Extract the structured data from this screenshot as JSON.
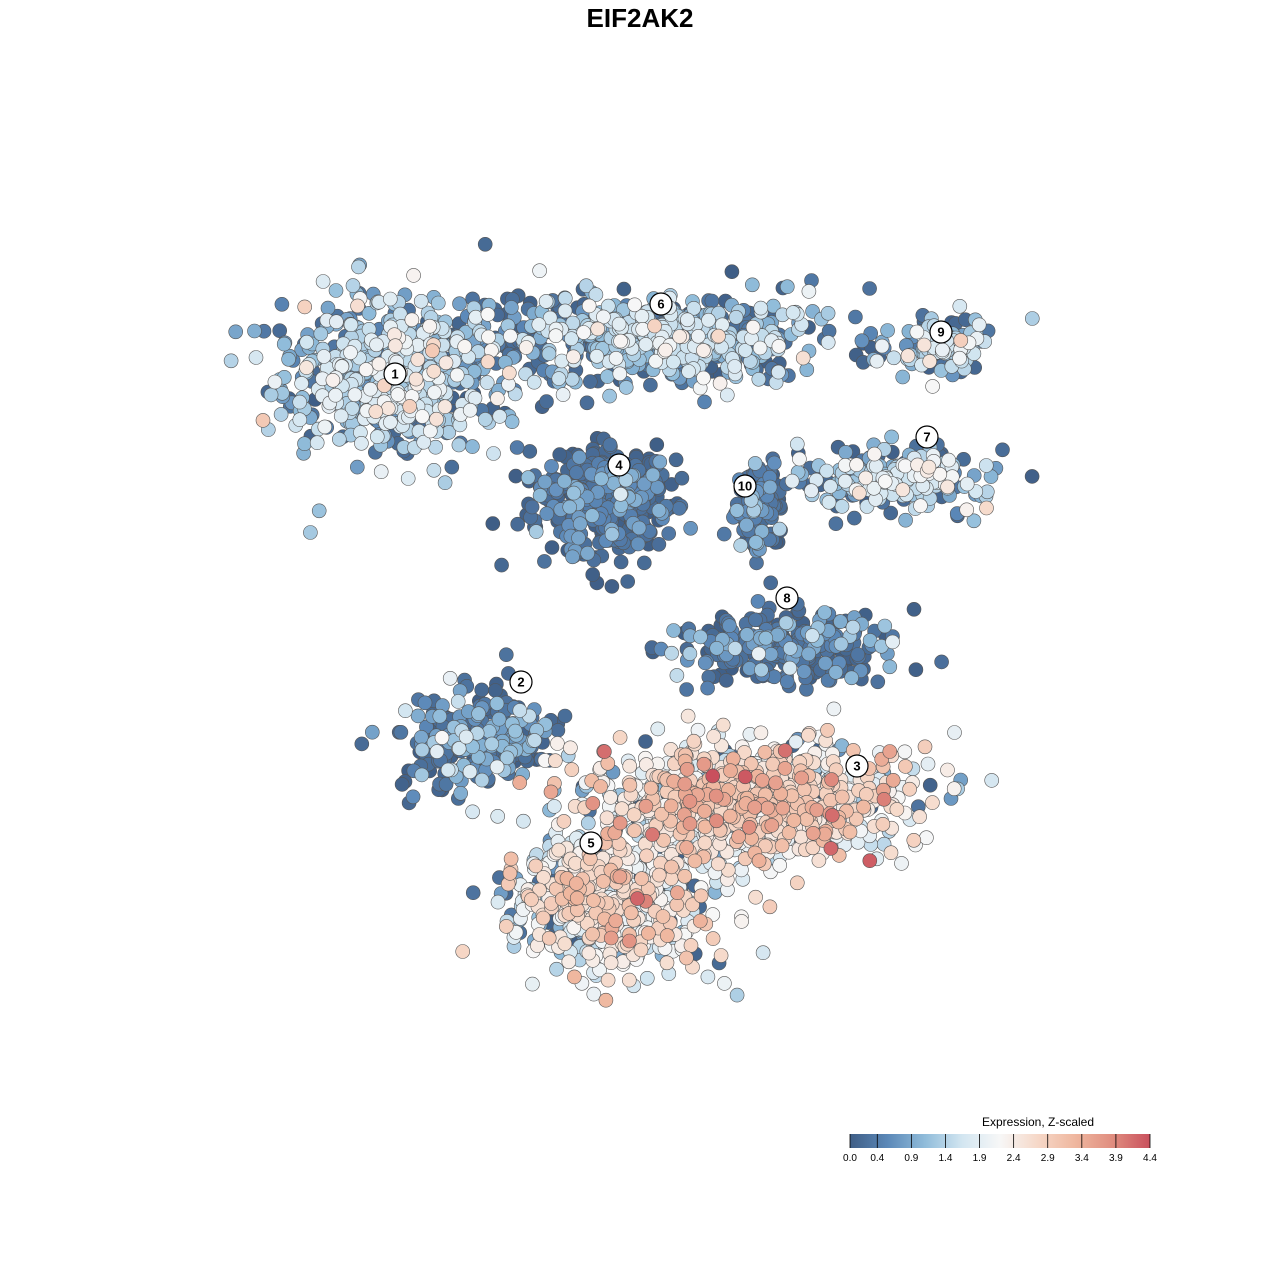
{
  "chart_data": {
    "type": "scatter",
    "title": "EIF2AK2",
    "xlabel": "",
    "ylabel": "",
    "grid": false,
    "legend": {
      "title": "Expression, Z-scaled",
      "placement": "bottom-right",
      "min": 0.0,
      "max": 4.4,
      "ticks": [
        "0.0",
        "0.4",
        "0.9",
        "1.4",
        "1.9",
        "2.4",
        "2.9",
        "3.4",
        "3.9",
        "4.4"
      ],
      "colors": [
        "#3f5e86",
        "#5b88b8",
        "#90bcda",
        "#d3e6f1",
        "#f7f7f7",
        "#f6d8c8",
        "#efb79f",
        "#e08d7f",
        "#c9505d"
      ]
    },
    "x_range": [
      -60,
      60
    ],
    "y_range": [
      -60,
      60
    ],
    "clusters": [
      {
        "label": "1",
        "x": -35,
        "y": 38,
        "spread": [
          13,
          9
        ],
        "n": 700,
        "mean": 1.35,
        "sd": 0.55,
        "low_frac": 0.22
      },
      {
        "label": "6",
        "x": 3,
        "y": 43,
        "spread": [
          20,
          5
        ],
        "n": 650,
        "mean": 1.25,
        "sd": 0.55,
        "low_frac": 0.28
      },
      {
        "label": "9",
        "x": 43,
        "y": 42,
        "spread": [
          6,
          3
        ],
        "n": 120,
        "mean": 1.35,
        "sd": 0.5,
        "low_frac": 0.3
      },
      {
        "label": "7",
        "x": 36,
        "y": 23,
        "spread": [
          11,
          3.5
        ],
        "n": 260,
        "mean": 1.35,
        "sd": 0.55,
        "low_frac": 0.3
      },
      {
        "label": "4",
        "x": -5,
        "y": 20,
        "spread": [
          8,
          6
        ],
        "n": 420,
        "mean": 0.45,
        "sd": 0.45,
        "low_frac": 0.6
      },
      {
        "label": "10",
        "x": 17,
        "y": 19,
        "spread": [
          3,
          5
        ],
        "n": 130,
        "mean": 0.5,
        "sd": 0.45,
        "low_frac": 0.55
      },
      {
        "label": "8",
        "x": 21,
        "y": -1,
        "spread": [
          12,
          4
        ],
        "n": 300,
        "mean": 0.6,
        "sd": 0.5,
        "low_frac": 0.5
      },
      {
        "label": "2",
        "x": -23,
        "y": -14,
        "spread": [
          9,
          6
        ],
        "n": 260,
        "mean": 0.7,
        "sd": 0.6,
        "low_frac": 0.45
      },
      {
        "label": "3",
        "x": 16,
        "y": -23,
        "spread": [
          18,
          7
        ],
        "n": 1000,
        "mean": 2.35,
        "sd": 0.7,
        "low_frac": 0.08
      },
      {
        "label": "5",
        "x": -4,
        "y": -37,
        "spread": [
          11,
          8
        ],
        "n": 700,
        "mean": 2.0,
        "sd": 0.7,
        "low_frac": 0.1
      }
    ],
    "cluster_label_positions": [
      {
        "label": "1",
        "x": -35,
        "y": 38
      },
      {
        "label": "6",
        "x": 3,
        "y": 48
      },
      {
        "label": "9",
        "x": 43,
        "y": 44
      },
      {
        "label": "7",
        "x": 41,
        "y": 29
      },
      {
        "label": "4",
        "x": -3,
        "y": 25
      },
      {
        "label": "10",
        "x": 15,
        "y": 22
      },
      {
        "label": "8",
        "x": 21,
        "y": 6
      },
      {
        "label": "2",
        "x": -17,
        "y": -6
      },
      {
        "label": "3",
        "x": 31,
        "y": -18
      },
      {
        "label": "5",
        "x": -7,
        "y": -29
      }
    ]
  }
}
